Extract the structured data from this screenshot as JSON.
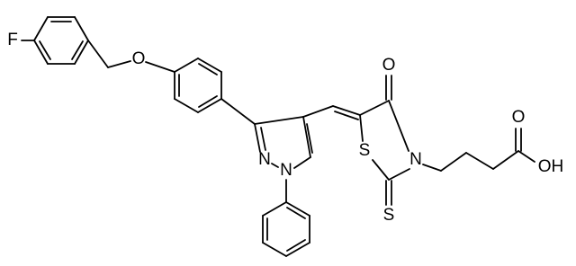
{
  "atoms": [
    {
      "label": "F"
    },
    {
      "label": "O"
    },
    {
      "label": "N"
    },
    {
      "label": "N"
    },
    {
      "label": "O"
    },
    {
      "label": "S"
    },
    {
      "label": "N"
    },
    {
      "label": "S"
    },
    {
      "label": "O"
    },
    {
      "label": "OH"
    }
  ]
}
